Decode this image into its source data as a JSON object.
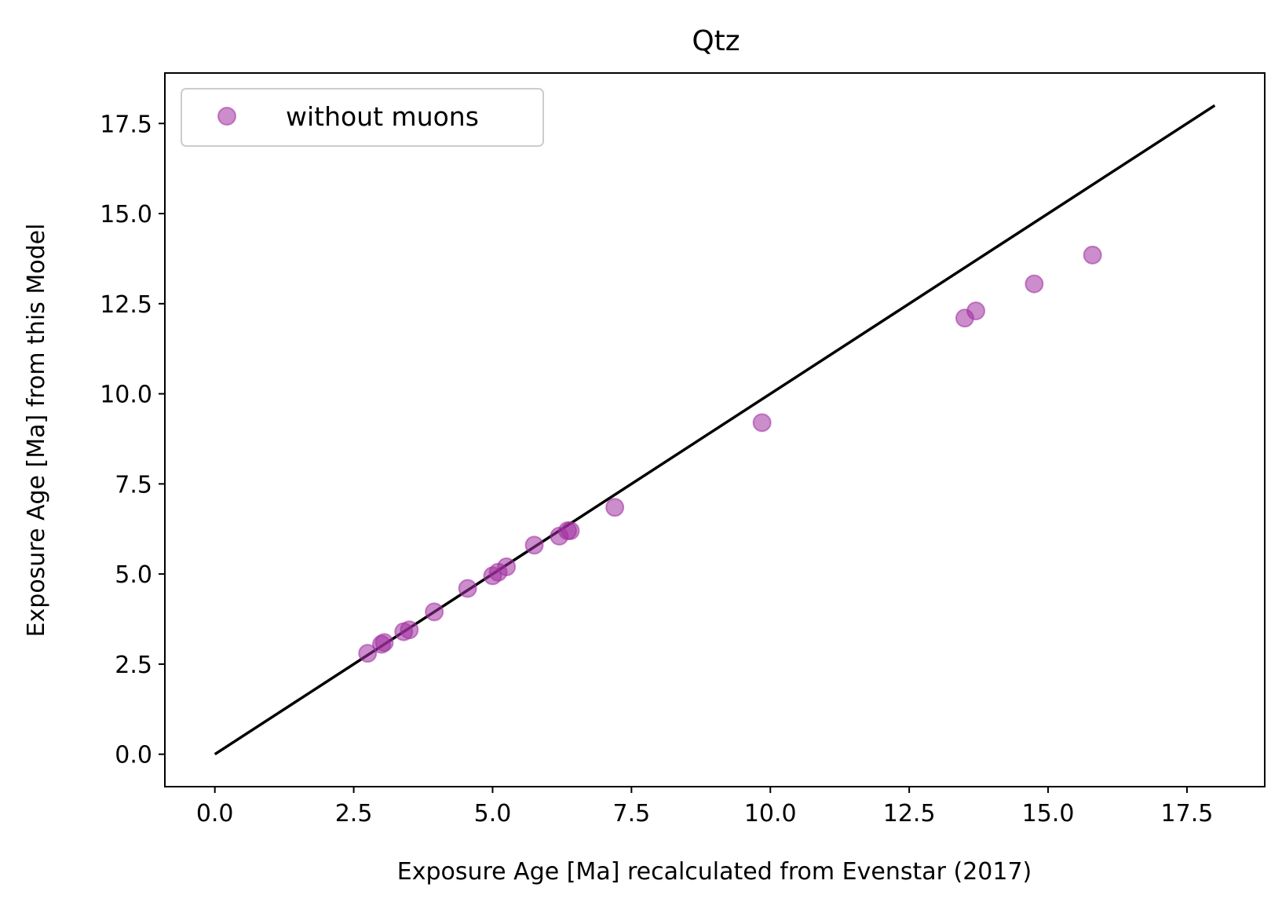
{
  "chart_data": {
    "type": "scatter",
    "title": "Qtz",
    "xlabel": "Exposure Age [Ma] recalculated from Evenstar (2017)",
    "ylabel": "Exposure Age [Ma] from this Model",
    "xlim": [
      -0.9,
      18.9
    ],
    "ylim": [
      -0.9,
      18.9
    ],
    "xticks": [
      "0.0",
      "2.5",
      "5.0",
      "7.5",
      "10.0",
      "12.5",
      "15.0",
      "17.5"
    ],
    "yticks": [
      "0.0",
      "2.5",
      "5.0",
      "7.5",
      "10.0",
      "12.5",
      "15.0",
      "17.5"
    ],
    "grid": false,
    "legend": "upper left",
    "marker_color": "#a02fa0",
    "line_color": "#000000",
    "series": [
      {
        "name": "without muons",
        "type": "scatter",
        "x": [
          2.75,
          3.0,
          3.05,
          3.4,
          3.5,
          3.95,
          4.55,
          5.0,
          5.1,
          5.25,
          5.75,
          6.2,
          6.35,
          6.4,
          7.2,
          9.85,
          13.5,
          13.7,
          14.75,
          15.8
        ],
        "y": [
          2.8,
          3.05,
          3.1,
          3.4,
          3.45,
          3.95,
          4.6,
          4.95,
          5.05,
          5.2,
          5.8,
          6.05,
          6.2,
          6.2,
          6.85,
          9.2,
          12.1,
          12.3,
          13.05,
          13.85
        ]
      },
      {
        "type": "line",
        "x": [
          0.0,
          18.0
        ],
        "y": [
          0.0,
          18.0
        ]
      }
    ]
  }
}
